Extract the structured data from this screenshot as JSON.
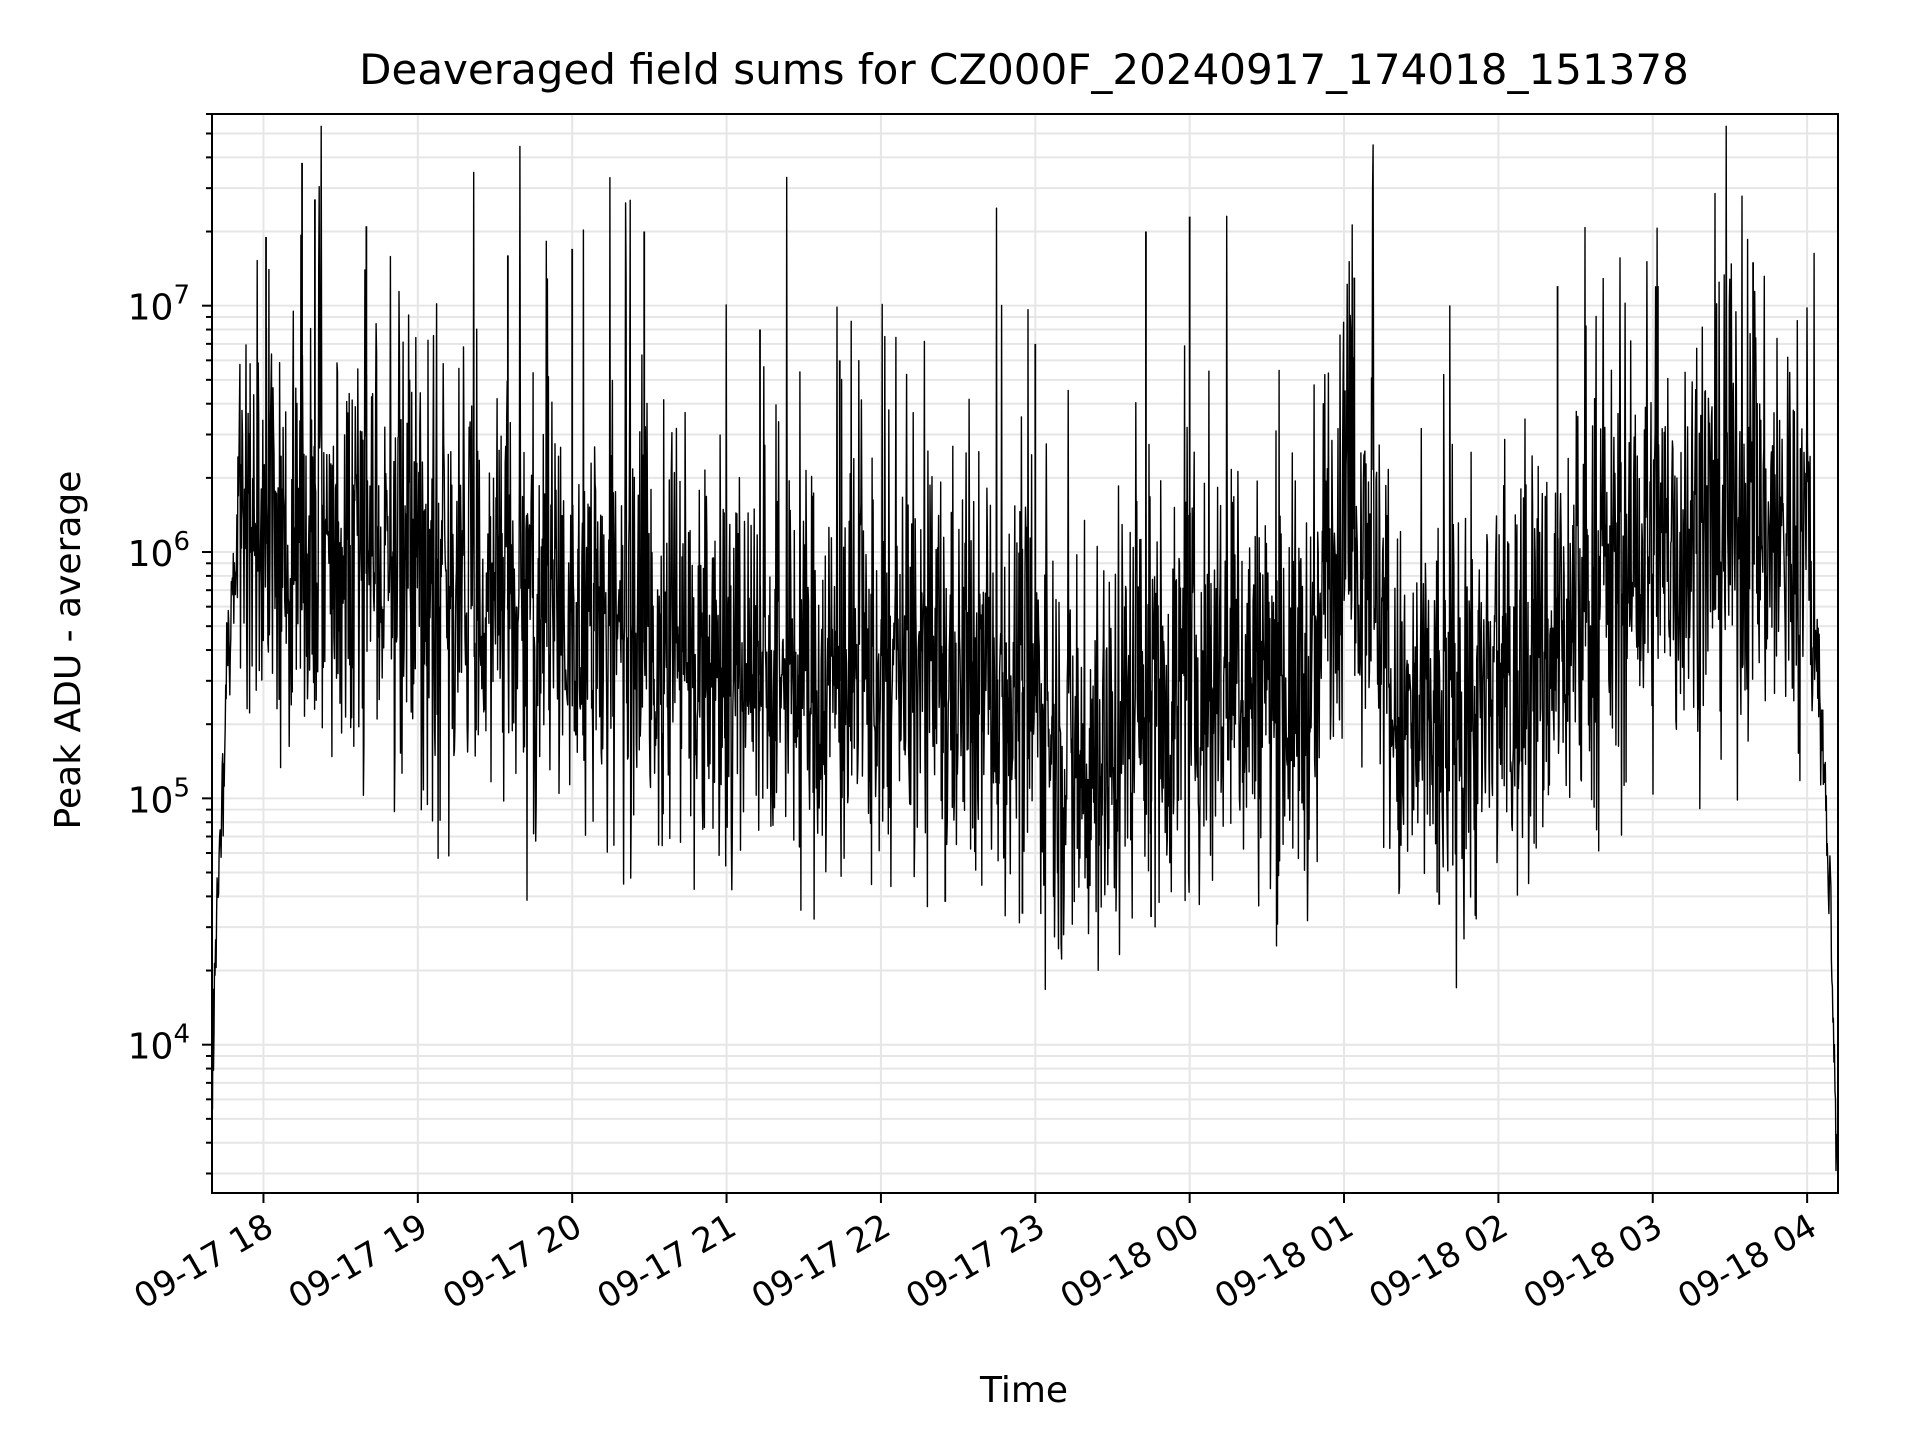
{
  "chart_data": {
    "type": "line",
    "title": "Deaveraged field sums for CZ000F_20240917_174018_151378",
    "xlabel": "Time",
    "ylabel": "Peak ADU - average",
    "yscale": "log",
    "ylim": [
      2500,
      60000000
    ],
    "xlim": [
      "2024-09-17 17:40",
      "2024-09-18 04:12"
    ],
    "grid": true,
    "line_color": "#000000",
    "grid_color": "#e6e6e6",
    "x_ticks": [
      {
        "t": "2024-09-17 18:00",
        "label": "09-17 18"
      },
      {
        "t": "2024-09-17 19:00",
        "label": "09-17 19"
      },
      {
        "t": "2024-09-17 20:00",
        "label": "09-17 20"
      },
      {
        "t": "2024-09-17 21:00",
        "label": "09-17 21"
      },
      {
        "t": "2024-09-17 22:00",
        "label": "09-17 22"
      },
      {
        "t": "2024-09-17 23:00",
        "label": "09-17 23"
      },
      {
        "t": "2024-09-18 00:00",
        "label": "09-18 00"
      },
      {
        "t": "2024-09-18 01:00",
        "label": "09-18 01"
      },
      {
        "t": "2024-09-18 02:00",
        "label": "09-18 02"
      },
      {
        "t": "2024-09-18 03:00",
        "label": "09-18 03"
      },
      {
        "t": "2024-09-18 04:00",
        "label": "09-18 04"
      }
    ],
    "y_ticks": [
      {
        "value": 10000,
        "base": "10",
        "exp": "4"
      },
      {
        "value": 100000,
        "base": "10",
        "exp": "5"
      },
      {
        "value": 1000000,
        "base": "10",
        "exp": "6"
      },
      {
        "value": 10000000,
        "base": "10",
        "exp": "7"
      }
    ],
    "series": [
      {
        "points": [
          [
            "2024-09-17 17:40",
            7000
          ],
          [
            "2024-09-17 17:41",
            18000
          ],
          [
            "2024-09-17 17:42",
            35000
          ],
          [
            "2024-09-17 17:43",
            60000
          ],
          [
            "2024-09-17 17:44",
            120000
          ],
          [
            "2024-09-17 17:45",
            250000
          ],
          [
            "2024-09-17 17:47",
            500000
          ],
          [
            "2024-09-17 17:49",
            900000
          ],
          [
            "2024-09-17 17:51",
            1500000
          ],
          [
            "2024-09-17 17:55",
            1300000
          ],
          [
            "2024-09-17 18:00",
            1100000
          ],
          [
            "2024-09-17 18:05",
            1000000
          ],
          [
            "2024-09-17 18:10",
            1000000
          ],
          [
            "2024-09-17 18:20",
            900000
          ],
          [
            "2024-09-17 18:30",
            850000
          ],
          [
            "2024-09-17 18:45",
            800000
          ],
          [
            "2024-09-17 19:00",
            750000
          ],
          [
            "2024-09-17 19:15",
            700000
          ],
          [
            "2024-09-17 19:30",
            600000
          ],
          [
            "2024-09-17 19:45",
            550000
          ],
          [
            "2024-09-17 20:00",
            500000
          ],
          [
            "2024-09-17 20:20",
            450000
          ],
          [
            "2024-09-17 20:40",
            400000
          ],
          [
            "2024-09-17 21:00",
            330000
          ],
          [
            "2024-09-17 21:30",
            300000
          ],
          [
            "2024-09-17 22:00",
            300000
          ],
          [
            "2024-09-17 22:20",
            320000
          ],
          [
            "2024-09-17 22:40",
            300000
          ],
          [
            "2024-09-17 23:00",
            260000
          ],
          [
            "2024-09-17 23:15",
            120000
          ],
          [
            "2024-09-17 23:30",
            150000
          ],
          [
            "2024-09-17 23:40",
            300000
          ],
          [
            "2024-09-17 23:50",
            250000
          ],
          [
            "2024-09-18 00:00",
            280000
          ],
          [
            "2024-09-18 00:20",
            300000
          ],
          [
            "2024-09-18 00:40",
            280000
          ],
          [
            "2024-09-18 00:50",
            260000
          ],
          [
            "2024-09-18 00:52",
            900000
          ],
          [
            "2024-09-18 01:00",
            1200000
          ],
          [
            "2024-09-18 01:10",
            1300000
          ],
          [
            "2024-09-18 01:15",
            450000
          ],
          [
            "2024-09-18 01:20",
            180000
          ],
          [
            "2024-09-18 01:40",
            200000
          ],
          [
            "2024-09-18 02:00",
            220000
          ],
          [
            "2024-09-18 02:20",
            400000
          ],
          [
            "2024-09-18 02:40",
            700000
          ],
          [
            "2024-09-18 03:00",
            900000
          ],
          [
            "2024-09-18 03:20",
            1200000
          ],
          [
            "2024-09-18 03:40",
            1300000
          ],
          [
            "2024-09-18 03:55",
            1000000
          ],
          [
            "2024-09-18 04:00",
            900000
          ],
          [
            "2024-09-18 04:03",
            600000
          ],
          [
            "2024-09-18 04:05",
            250000
          ],
          [
            "2024-09-18 04:07",
            100000
          ],
          [
            "2024-09-18 04:09",
            40000
          ],
          [
            "2024-09-18 04:10",
            15000
          ],
          [
            "2024-09-18 04:11",
            6000
          ],
          [
            "2024-09-18 04:12",
            4000
          ]
        ],
        "spikes": [
          [
            "2024-09-17 18:15",
            38000000
          ],
          [
            "2024-09-17 18:20",
            27000000
          ],
          [
            "2024-09-17 18:40",
            21000000
          ],
          [
            "2024-09-17 18:01",
            19000000
          ],
          [
            "2024-09-17 19:35",
            16000000
          ],
          [
            "2024-09-17 20:28",
            20000000
          ],
          [
            "2024-09-17 20:00",
            17000000
          ],
          [
            "2024-09-17 21:13",
            8000000
          ],
          [
            "2024-09-17 21:44",
            6000000
          ],
          [
            "2024-09-17 23:00",
            7000000
          ],
          [
            "2024-09-17 23:43",
            20000000
          ],
          [
            "2024-09-18 00:00",
            23000000
          ],
          [
            "2024-09-18 01:04",
            13000000
          ],
          [
            "2024-09-18 02:23",
            12000000
          ],
          [
            "2024-09-18 03:39",
            15000000
          ],
          [
            "2024-09-18 03:02",
            12000000
          ],
          [
            "2024-09-17 22:55",
            34000
          ],
          [
            "2024-09-17 23:45",
            33000
          ],
          [
            "2024-09-18 01:37",
            37000
          ],
          [
            "2024-09-17 22:25",
            38000
          ]
        ]
      }
    ]
  }
}
